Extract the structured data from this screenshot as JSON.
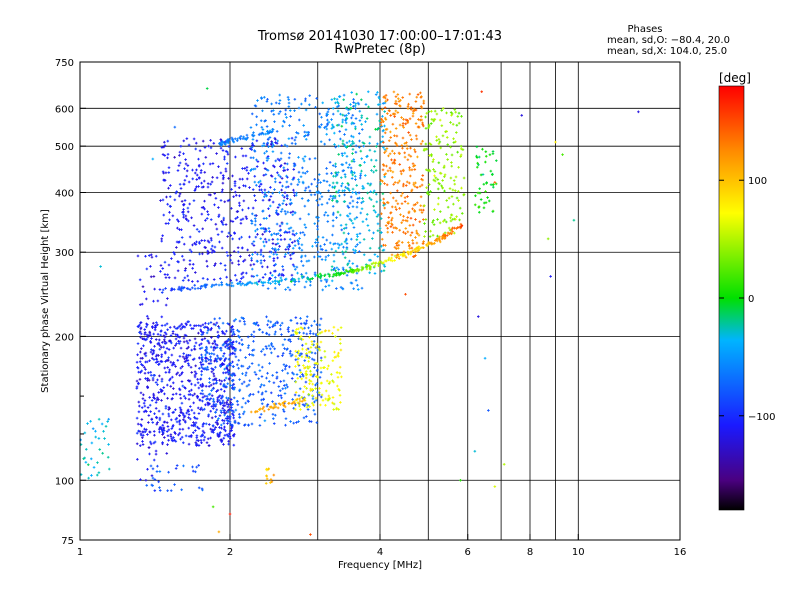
{
  "chart_data": {
    "type": "scatter",
    "title": "Tromsø 20141030 17:00:00–17:01:43",
    "subtitle": "RwPretec (8p)",
    "xlabel": "Frequency [MHz]",
    "ylabel": "Stationary phase Virtual Height [km]",
    "x_scale": "log",
    "y_scale": "log",
    "xlim": [
      1,
      16
    ],
    "ylim": [
      75,
      750
    ],
    "x_ticks": [
      1,
      2,
      4,
      6,
      8,
      10,
      16
    ],
    "x_tick_labels": [
      "1",
      "2",
      "4",
      "6",
      "8",
      "10",
      "16"
    ],
    "x_minor_ticks": [
      3,
      5,
      7,
      9
    ],
    "y_ticks": [
      75,
      100,
      200,
      300,
      400,
      500,
      600,
      750
    ],
    "y_tick_labels": [
      "75",
      "100",
      "200",
      "300",
      "400",
      "500",
      "600",
      "750"
    ],
    "y_minor_ticks": [
      125,
      150
    ],
    "grid": true,
    "annotation": {
      "title": "Phases",
      "line1": "mean, sd,O: −80.4, 20.0",
      "line2": "mean, sd,X: 104.0, 25.0"
    },
    "colorbar": {
      "label": "[deg]",
      "min": -180,
      "max": 180,
      "ticks": [
        100,
        0,
        -100
      ],
      "tick_labels": [
        "100",
        "0",
        "−100"
      ],
      "colormap": [
        "#000000",
        "#4a0080",
        "#1a1aff",
        "#00b4ff",
        "#00e000",
        "#ffff00",
        "#ff8800",
        "#ff0000"
      ]
    },
    "series": [
      {
        "type": "cluster",
        "x": [
          1.3,
          2.05
        ],
        "y": [
          118,
          215
        ],
        "phase": -110,
        "n": 750
      },
      {
        "type": "cluster",
        "x": [
          1.75,
          3.05
        ],
        "y": [
          130,
          220
        ],
        "phase": -75,
        "n": 450
      },
      {
        "type": "cluster",
        "x": [
          2.7,
          3.35
        ],
        "y": [
          140,
          210
        ],
        "phase": 70,
        "n": 160
      },
      {
        "type": "cluster",
        "x": [
          1.45,
          2.7
        ],
        "y": [
          260,
          520
        ],
        "phase": -110,
        "n": 500
      },
      {
        "type": "cluster",
        "x": [
          2.2,
          3.7
        ],
        "y": [
          250,
          640
        ],
        "phase": -60,
        "n": 550
      },
      {
        "type": "cluster",
        "x": [
          3.2,
          4.1
        ],
        "y": [
          270,
          650
        ],
        "phase": -30,
        "n": 250
      },
      {
        "type": "cluster",
        "x": [
          4.0,
          4.9
        ],
        "y": [
          290,
          650
        ],
        "phase": 130,
        "n": 300
      },
      {
        "type": "cluster",
        "x": [
          4.9,
          5.9
        ],
        "y": [
          320,
          600
        ],
        "phase": 40,
        "n": 160
      },
      {
        "type": "cluster",
        "x": [
          1.3,
          1.5
        ],
        "y": [
          100,
          300
        ],
        "phase": -115,
        "n": 80
      },
      {
        "type": "cluster",
        "x": [
          6.2,
          6.9
        ],
        "y": [
          360,
          500
        ],
        "phase": 0,
        "n": 45
      },
      {
        "type": "cluster",
        "x": [
          1.0,
          1.15
        ],
        "y": [
          100,
          135
        ],
        "phase": -30,
        "n": 35
      },
      {
        "type": "cluster",
        "x": [
          1.35,
          1.8
        ],
        "y": [
          95,
          108
        ],
        "phase": -80,
        "n": 30
      },
      {
        "type": "cluster",
        "x": [
          2.35,
          2.45
        ],
        "y": [
          98,
          106
        ],
        "phase": 100,
        "n": 12
      },
      {
        "type": "trace",
        "x": [
          1.45,
          1.8,
          2.4,
          3.1,
          3.6,
          4.0,
          4.6,
          5.3,
          5.9
        ],
        "y": [
          250,
          255,
          260,
          268,
          275,
          285,
          300,
          320,
          345
        ],
        "phase_start": -100,
        "phase_end": 150,
        "n": 260
      },
      {
        "type": "trace",
        "x": [
          2.2,
          2.5,
          2.85
        ],
        "y": [
          140,
          143,
          148
        ],
        "phase": 110,
        "n": 40
      },
      {
        "type": "trace",
        "x": [
          1.9,
          2.1,
          2.5
        ],
        "y": [
          505,
          520,
          540
        ],
        "phase": -60,
        "n": 60
      }
    ],
    "scattered_points": [
      {
        "x": 6.4,
        "y": 650,
        "phase": 160
      },
      {
        "x": 7.7,
        "y": 580,
        "phase": -120
      },
      {
        "x": 9.0,
        "y": 510,
        "phase": 80
      },
      {
        "x": 9.3,
        "y": 480,
        "phase": 20
      },
      {
        "x": 9.8,
        "y": 350,
        "phase": -20
      },
      {
        "x": 8.7,
        "y": 320,
        "phase": 40
      },
      {
        "x": 8.8,
        "y": 267,
        "phase": -110
      },
      {
        "x": 13.2,
        "y": 590,
        "phase": -120
      },
      {
        "x": 6.5,
        "y": 180,
        "phase": -40
      },
      {
        "x": 6.6,
        "y": 140,
        "phase": -80
      },
      {
        "x": 6.2,
        "y": 115,
        "phase": -30
      },
      {
        "x": 6.8,
        "y": 97,
        "phase": 60
      },
      {
        "x": 7.1,
        "y": 108,
        "phase": 50
      },
      {
        "x": 5.8,
        "y": 100,
        "phase": 10
      },
      {
        "x": 4.5,
        "y": 245,
        "phase": 150
      },
      {
        "x": 2.9,
        "y": 77,
        "phase": 150
      },
      {
        "x": 2.0,
        "y": 85,
        "phase": 170
      },
      {
        "x": 1.9,
        "y": 78,
        "phase": 110
      },
      {
        "x": 1.85,
        "y": 88,
        "phase": 20
      },
      {
        "x": 1.55,
        "y": 548,
        "phase": -70
      },
      {
        "x": 1.4,
        "y": 470,
        "phase": -40
      },
      {
        "x": 1.1,
        "y": 280,
        "phase": -30
      },
      {
        "x": 1.8,
        "y": 660,
        "phase": -10
      },
      {
        "x": 6.8,
        "y": 420,
        "phase": 140
      },
      {
        "x": 6.3,
        "y": 220,
        "phase": -120
      },
      {
        "x": 2.35,
        "y": 405,
        "phase": -110
      }
    ]
  }
}
